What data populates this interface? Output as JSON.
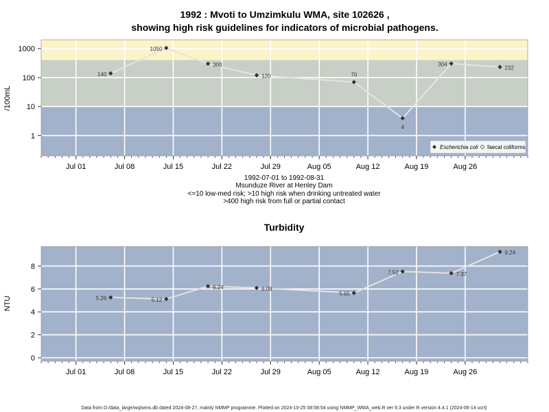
{
  "chart_data": [
    {
      "type": "line",
      "title_line1": "1992 : Mvoti to Umzimkulu WMA, site 102626 ,",
      "title_line2": "showing high risk guidelines for indicators of microbial pathogens.",
      "ylabel": "/100mL",
      "y_scale": "log",
      "ylim": [
        0.2,
        2000
      ],
      "yticks": [
        1,
        10,
        100,
        1000
      ],
      "ytick_labels": [
        "1",
        "10",
        "100",
        "1000"
      ],
      "xlim": [
        "1992-06-26",
        "1992-09-04"
      ],
      "xticks": [
        "1992-07-01",
        "1992-07-08",
        "1992-07-15",
        "1992-07-22",
        "1992-07-29",
        "1992-08-05",
        "1992-08-12",
        "1992-08-19",
        "1992-08-26"
      ],
      "xtick_labels": [
        "Jul 01",
        "Jul 08",
        "Jul 15",
        "Jul 22",
        "Jul 29",
        "Aug 05",
        "Aug 12",
        "Aug 19",
        "Aug 26"
      ],
      "risk_bands": [
        {
          "from": 0.2,
          "to": 10,
          "color": "#a3b2cb"
        },
        {
          "from": 10,
          "to": 400,
          "color": "#c8cfc6"
        },
        {
          "from": 400,
          "to": 2000,
          "color": "#fbf4c8"
        }
      ],
      "series": [
        {
          "name": "Escherichia coli",
          "x": [
            "1992-07-06",
            "1992-07-14",
            "1992-07-20",
            "1992-07-27",
            "1992-08-10",
            "1992-08-17",
            "1992-08-24",
            "1992-08-31"
          ],
          "values": [
            140,
            1050,
            300,
            120,
            70,
            4,
            304,
            232
          ],
          "labels": [
            "140",
            "1050",
            "300",
            "120",
            "70",
            "4",
            "304",
            "232"
          ]
        }
      ],
      "legend": {
        "position": "bottom-right",
        "entries": [
          "Escherichia coli",
          "faecal coliforms"
        ]
      },
      "caption": [
        "1992-07-01 to 1992-08-31",
        "Msunduze River at Henley Dam",
        "<=10 low-med risk; >10 high risk when drinking untreated water",
        ">400 high risk from full or partial contact"
      ]
    },
    {
      "type": "line",
      "title": "Turbidity",
      "ylabel": "NTU",
      "ylim": [
        -0.3,
        9.7
      ],
      "yticks": [
        0,
        2,
        4,
        6,
        8
      ],
      "ytick_labels": [
        "0",
        "2",
        "4",
        "6",
        "8"
      ],
      "xlim": [
        "1992-06-26",
        "1992-09-04"
      ],
      "xticks": [
        "1992-07-01",
        "1992-07-08",
        "1992-07-15",
        "1992-07-22",
        "1992-07-29",
        "1992-08-05",
        "1992-08-12",
        "1992-08-19",
        "1992-08-26"
      ],
      "xtick_labels": [
        "Jul 01",
        "Jul 08",
        "Jul 15",
        "Jul 22",
        "Jul 29",
        "Aug 05",
        "Aug 12",
        "Aug 19",
        "Aug 26"
      ],
      "series": [
        {
          "x": [
            "1992-07-06",
            "1992-07-14",
            "1992-07-20",
            "1992-07-27",
            "1992-08-10",
            "1992-08-17",
            "1992-08-24",
            "1992-08-31"
          ],
          "values": [
            5.26,
            5.12,
            6.24,
            6.09,
            5.65,
            7.52,
            7.37,
            9.24
          ],
          "labels": [
            "5.26",
            "5.12",
            "6.24",
            "6.09",
            "5.65",
            "7.52",
            "7.37",
            "9.24"
          ]
        }
      ],
      "background": "#a3b2cb"
    }
  ],
  "footer": "Data from D:/data_large/wq/wms.db dated 2024-08-27, mainly NMMP programme. Plotted on 2024-10-25 08:58:54 using NMMP_WMA_web.R ver 9.3 under R version 4.4.1 (2024-06-14 ucrt)"
}
